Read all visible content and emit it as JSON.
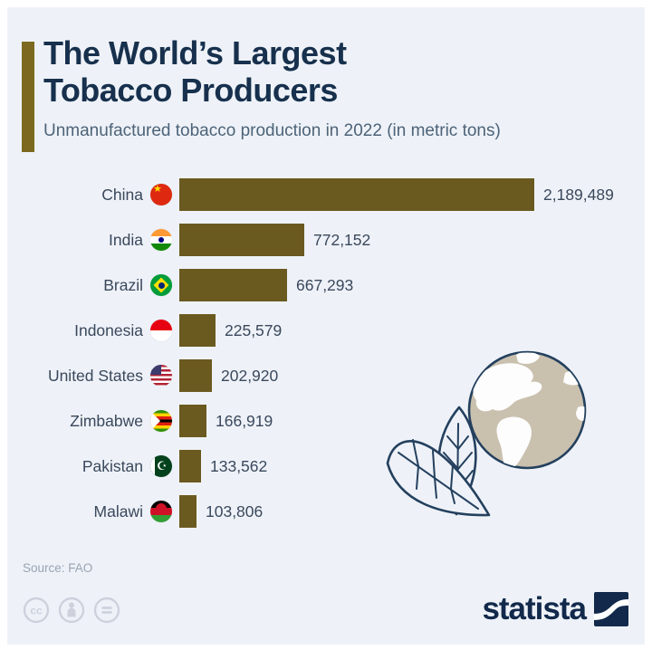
{
  "header": {
    "title_line1": "The World’s Largest",
    "title_line2": "Tobacco Producers",
    "subtitle": "Unmanufactured tobacco production in 2022 (in metric tons)"
  },
  "chart_data": {
    "type": "bar",
    "orientation": "horizontal",
    "title": "The World’s Largest Tobacco Producers",
    "subtitle": "Unmanufactured tobacco production in 2022 (in metric tons)",
    "xlabel": "",
    "ylabel": "",
    "unit": "metric tons",
    "xlim": [
      0,
      2189489
    ],
    "grid": false,
    "legend": "none",
    "categories": [
      "China",
      "India",
      "Brazil",
      "Indonesia",
      "United States",
      "Zimbabwe",
      "Pakistan",
      "Malawi"
    ],
    "values": [
      2189489,
      772152,
      667293,
      225579,
      202920,
      166919,
      133562,
      103806
    ],
    "value_labels": [
      "2,189,489",
      "772,152",
      "667,293",
      "225,579",
      "202,920",
      "166,919",
      "133,562",
      "103,806"
    ],
    "flags": [
      "cn",
      "in",
      "br",
      "id",
      "us",
      "zw",
      "pk",
      "mw"
    ],
    "bar_color": "#6b5a20"
  },
  "illustration": {
    "name": "globe-with-tobacco-leaves"
  },
  "footer": {
    "source": "Source: FAO",
    "license_icons": [
      "cc-icon",
      "attribution-person-icon",
      "no-derivatives-equals-icon"
    ],
    "brand": "statista"
  },
  "colors": {
    "background": "#eef2f8",
    "bar": "#6b5a20",
    "accent_bar": "#7c691f",
    "title": "#17304d",
    "subtitle": "#4d6378",
    "labels": "#3a485c",
    "source_text": "#9aa3b2",
    "brand_navy": "#12294b",
    "outline_navy": "#24405e",
    "globe_ocean": "#c9c0ae"
  }
}
